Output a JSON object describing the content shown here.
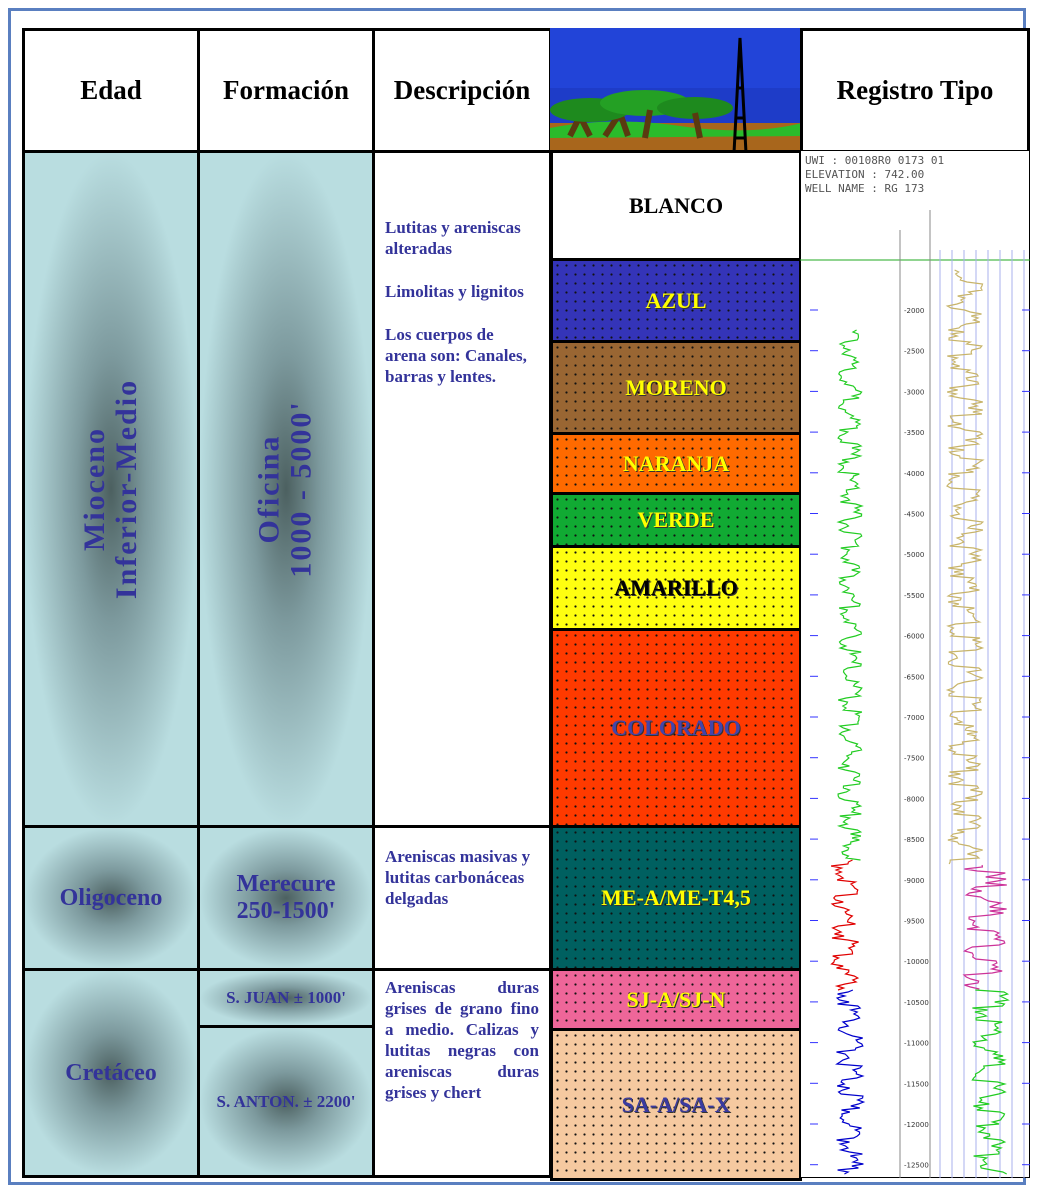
{
  "header": {
    "age": "Edad",
    "formation": "Formación",
    "description": "Descripción",
    "log": "Registro Tipo"
  },
  "ages": [
    {
      "lines": [
        "Mioceno",
        "Inferior-Medio"
      ]
    },
    {
      "lines": [
        "Oligoceno"
      ]
    },
    {
      "lines": [
        "Cretáceo"
      ]
    }
  ],
  "formations": [
    {
      "lines": [
        "Oficina",
        "1000 - 5000'"
      ]
    },
    {
      "lines": [
        "Merecure",
        "250-1500'"
      ]
    },
    {
      "lines": [
        "S. JUAN ± 1000'"
      ]
    },
    {
      "lines": [
        "S. ANTON. ± 2200'"
      ]
    }
  ],
  "descriptions": [
    [
      "Lutitas y areniscas alteradas",
      "Limolitas y lignitos",
      "Los cuerpos de arena son: Canales, barras y lentes."
    ],
    [
      "Areniscas masivas y lutitas carbonáceas delgadas"
    ],
    [
      "Areniscas duras grises de grano fino a medio. Calizas y lutitas negras con areniscas duras grises y chert"
    ]
  ],
  "units": [
    "BLANCO",
    "AZUL",
    "MORENO",
    "NARANJA",
    "VERDE",
    "AMARILLO",
    "COLORADO",
    "ME-A/ME-T4,5",
    "SJ-A/SJ-N",
    "SA-A/SA-X"
  ],
  "log": {
    "header": [
      "UWI : 00108R0 0173 01",
      "ELEVATION : 742.00",
      "WELL NAME : RG 173"
    ],
    "depth_labels": [
      "-2000",
      "-2500",
      "-3000",
      "-3500",
      "-4000",
      "-4500",
      "-5000",
      "-5500",
      "-6000",
      "-6500",
      "-7000",
      "-7500",
      "-8000",
      "-8500",
      "-9000",
      "-9500",
      "-10000",
      "-10500",
      "-11000",
      "-11500",
      "-12000",
      "-12500"
    ]
  }
}
